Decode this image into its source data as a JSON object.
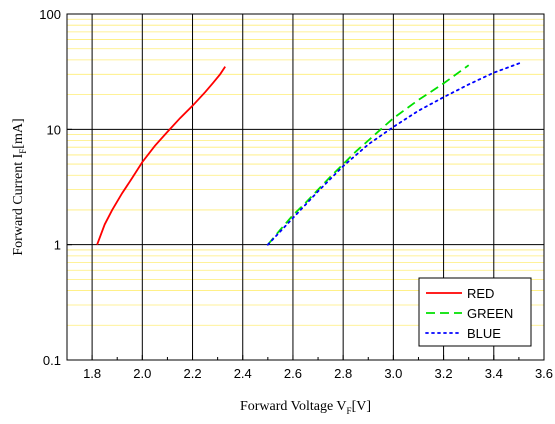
{
  "chart_data": {
    "type": "line",
    "title": "",
    "xlabel": {
      "main": "Forward Voltage V",
      "sub": "F",
      "unit": "[V]"
    },
    "ylabel": {
      "main": "Forward Current I",
      "sub": "F",
      "unit": "[mA]"
    },
    "xlim": [
      1.7,
      3.6
    ],
    "ylim": [
      0.1,
      100
    ],
    "y_scale": "log",
    "x_ticks": [
      "1.8",
      "2.0",
      "2.2",
      "2.4",
      "2.6",
      "2.8",
      "3.0",
      "3.2",
      "3.4",
      "3.6"
    ],
    "y_ticks": [
      "0.1",
      "1",
      "10",
      "100"
    ],
    "grid": true,
    "legend_position": "bottom-right",
    "series": [
      {
        "name": "RED",
        "color": "#ff0000",
        "style": "solid",
        "x": [
          1.82,
          1.85,
          1.88,
          1.92,
          1.96,
          2.0,
          2.05,
          2.1,
          2.15,
          2.2,
          2.25,
          2.28,
          2.31,
          2.33
        ],
        "y": [
          1.0,
          1.5,
          2.0,
          2.8,
          3.8,
          5.2,
          7.2,
          9.5,
          12.5,
          16.0,
          21.0,
          25.0,
          30.0,
          35.0
        ]
      },
      {
        "name": "GREEN",
        "color": "#00e000",
        "style": "dashed",
        "x": [
          2.5,
          2.55,
          2.6,
          2.65,
          2.7,
          2.75,
          2.8,
          2.85,
          2.9,
          2.95,
          3.0,
          3.1,
          3.2,
          3.3
        ],
        "y": [
          1.0,
          1.35,
          1.8,
          2.3,
          3.0,
          3.9,
          5.0,
          6.4,
          8.0,
          10.0,
          12.5,
          18.0,
          25.0,
          36.0
        ]
      },
      {
        "name": "BLUE",
        "color": "#0000ff",
        "style": "dotted",
        "x": [
          2.5,
          2.6,
          2.7,
          2.8,
          2.9,
          3.0,
          3.1,
          3.2,
          3.3,
          3.4,
          3.51
        ],
        "y": [
          1.0,
          1.7,
          2.9,
          4.8,
          7.4,
          10.5,
          14.5,
          19.0,
          24.5,
          31.0,
          38.0
        ]
      }
    ]
  }
}
